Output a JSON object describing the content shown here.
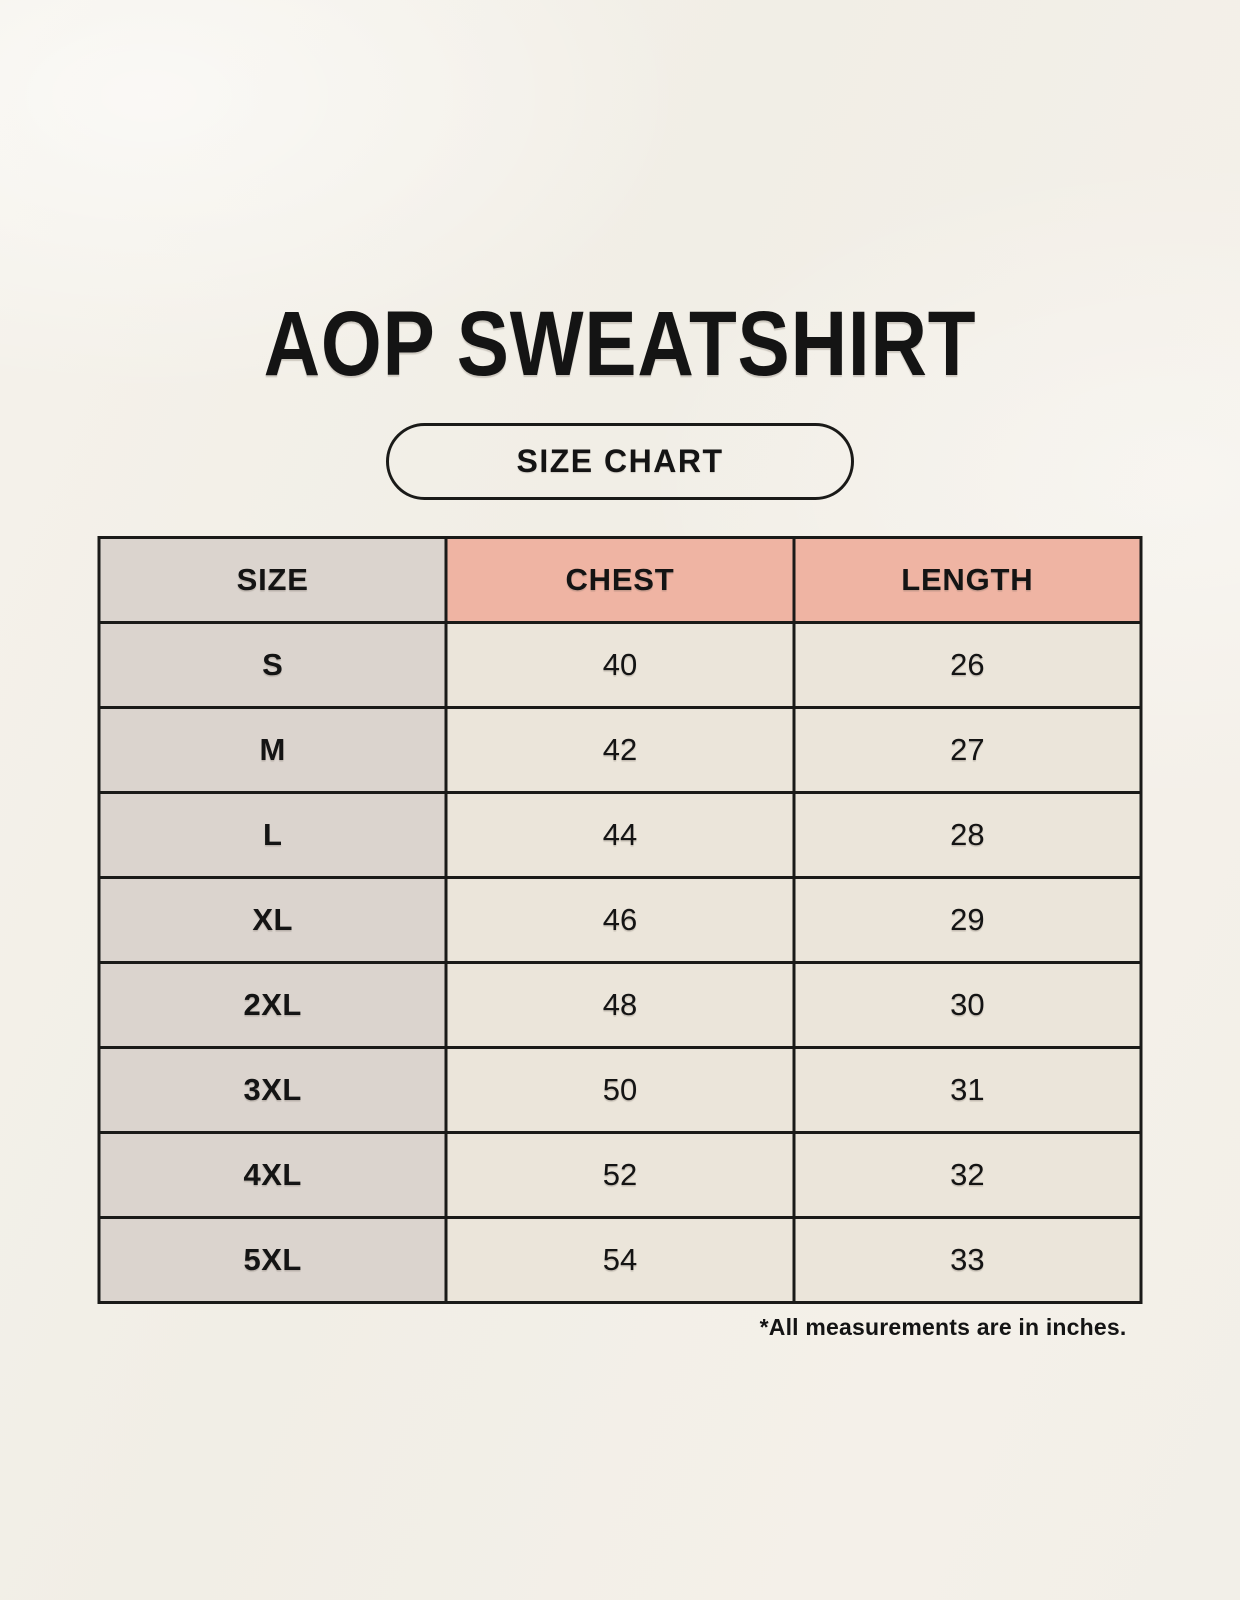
{
  "page": {
    "title": "AOP SWEATSHIRT",
    "badge_label": "SIZE CHART",
    "footnote": "*All measurements are in inches."
  },
  "theme": {
    "page_bg": "#f2efe8",
    "size_column_bg": "#dbd4ce",
    "accent_header_bg": "#efb4a3",
    "cell_bg": "#ebe5da",
    "border_color": "#1a1a18",
    "text_color": "#141414"
  },
  "chart_data": {
    "type": "table",
    "title": "AOP SWEATSHIRT",
    "subtitle": "SIZE CHART",
    "columns": [
      "SIZE",
      "CHEST",
      "LENGTH"
    ],
    "rows": [
      [
        "S",
        40,
        26
      ],
      [
        "M",
        42,
        27
      ],
      [
        "L",
        44,
        28
      ],
      [
        "XL",
        46,
        29
      ],
      [
        "2XL",
        48,
        30
      ],
      [
        "3XL",
        50,
        31
      ],
      [
        "4XL",
        52,
        32
      ],
      [
        "5XL",
        54,
        33
      ]
    ],
    "note": "*All measurements are in inches."
  }
}
